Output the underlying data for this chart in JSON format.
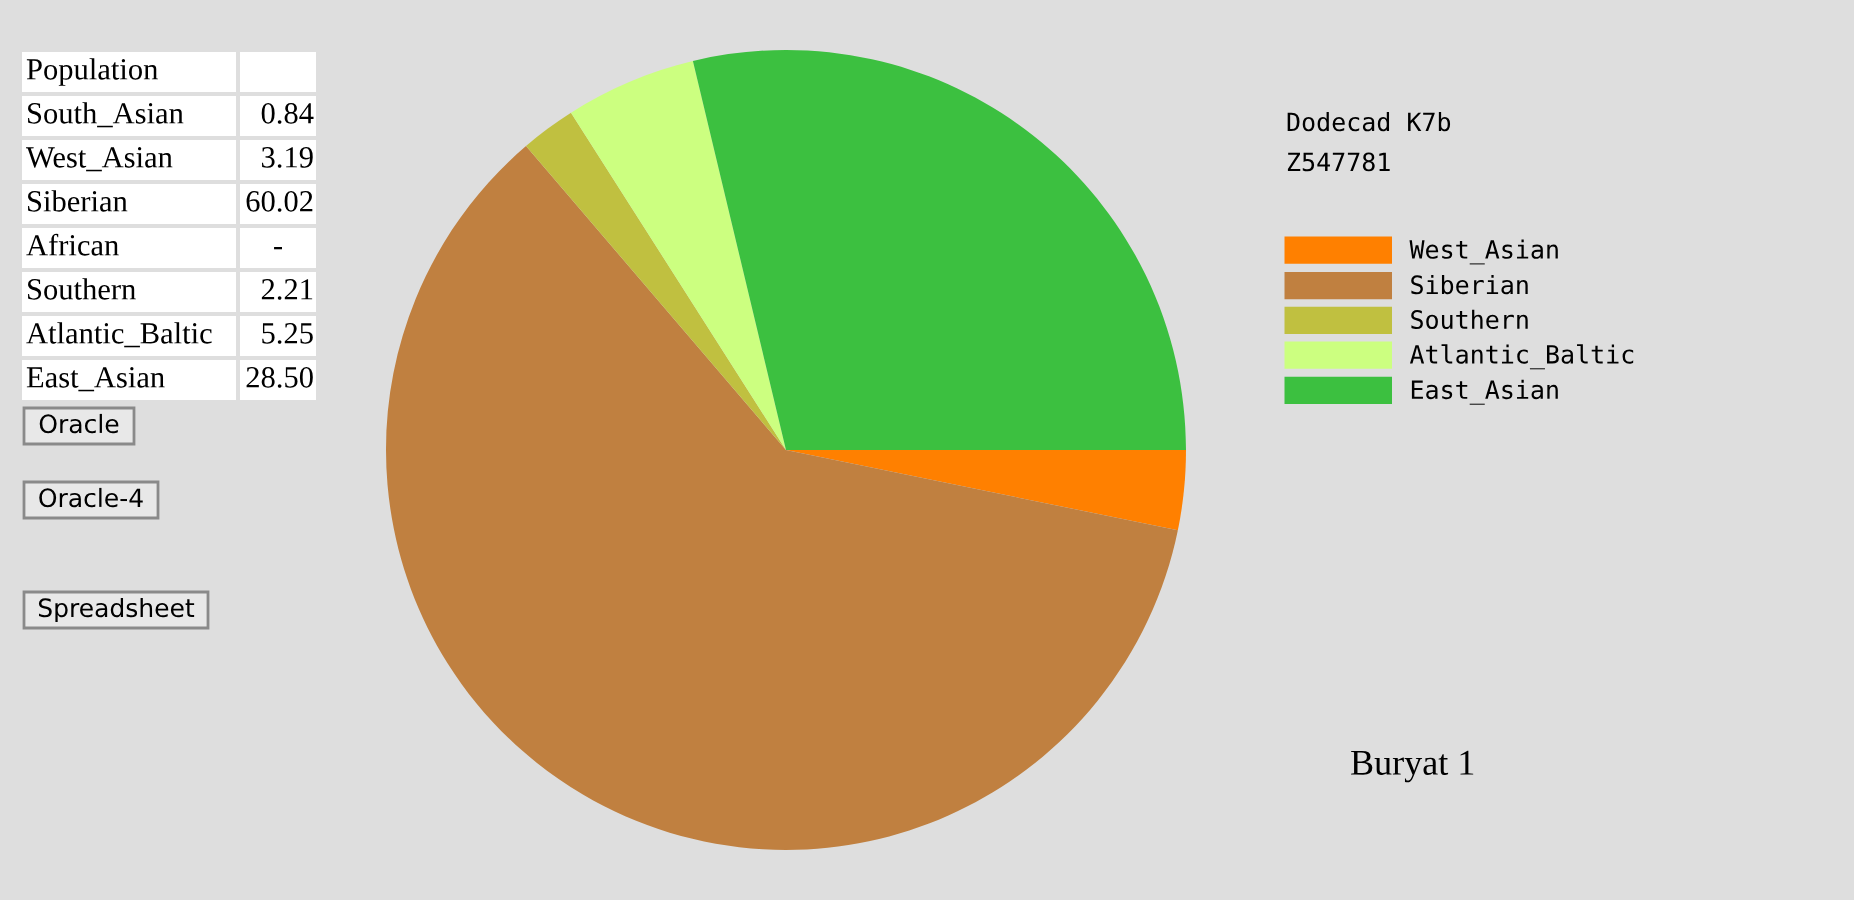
{
  "chart_data": {
    "type": "pie",
    "title": "Dodecad K7b",
    "subtitle": "Z547781",
    "categories": [
      "West_Asian",
      "Siberian",
      "Southern",
      "Atlantic_Baltic",
      "East_Asian"
    ],
    "values": [
      3.19,
      60.02,
      2.21,
      5.25,
      28.5
    ],
    "colors": [
      "#ff8000",
      "#c08040",
      "#c0c040",
      "#ccff80",
      "#3cc040"
    ],
    "legend": "right",
    "annotations": [
      "Buryat 1",
      "Population",
      "South_Asian",
      "0.84",
      "West_Asian",
      "3.19",
      "Siberian",
      "60.02",
      "African",
      "-",
      "Southern",
      "2.21",
      "Atlantic_Baltic",
      "5.25",
      "East_Asian",
      "28.50",
      "Oracle",
      "Oracle-4",
      "Spreadsheet"
    ]
  }
}
